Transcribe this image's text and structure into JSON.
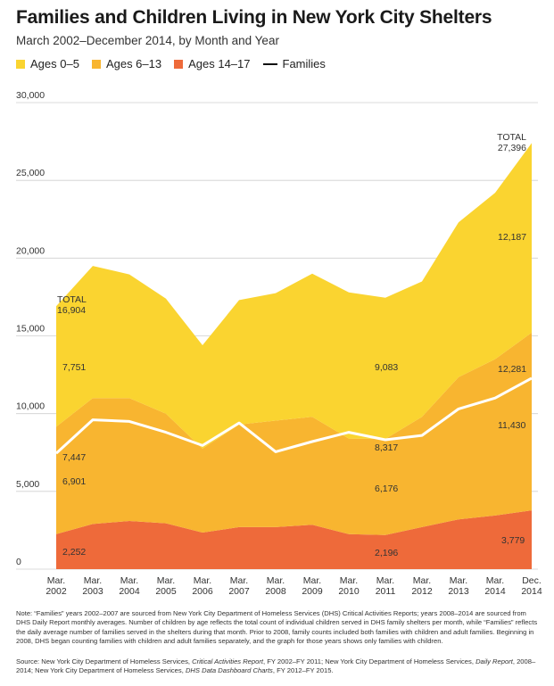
{
  "chart_data": {
    "type": "area",
    "title": "Families and Children Living in New York City Shelters",
    "subtitle": "March 2002–December 2014, by Month and Year",
    "xlabel": "",
    "ylabel": "",
    "ylim": [
      0,
      30000
    ],
    "yticks": [
      0,
      5000,
      10000,
      15000,
      20000,
      25000,
      30000
    ],
    "ytick_labels": [
      "0",
      "5,000",
      "10,000",
      "15,000",
      "20,000",
      "25,000",
      "30,000"
    ],
    "grid": true,
    "legend_position": "top-left",
    "categories": [
      [
        "Mar.",
        "2002"
      ],
      [
        "Mar.",
        "2003"
      ],
      [
        "Mar.",
        "2004"
      ],
      [
        "Mar.",
        "2005"
      ],
      [
        "Mar.",
        "2006"
      ],
      [
        "Mar.",
        "2007"
      ],
      [
        "Mar.",
        "2008"
      ],
      [
        "Mar.",
        "2009"
      ],
      [
        "Mar.",
        "2010"
      ],
      [
        "Mar.",
        "2011"
      ],
      [
        "Mar.",
        "2012"
      ],
      [
        "Mar.",
        "2013"
      ],
      [
        "Mar.",
        "2014"
      ],
      [
        "Dec.",
        "2014"
      ]
    ],
    "series": [
      {
        "name": "Ages 14–17",
        "color": "#ee6a3a",
        "values": [
          2252,
          2900,
          3100,
          2950,
          2350,
          2700,
          2700,
          2850,
          2250,
          2196,
          2700,
          3200,
          3450,
          3779
        ]
      },
      {
        "name": "Ages 6–13",
        "color": "#f8b530",
        "values": [
          6901,
          8100,
          7900,
          7050,
          5400,
          6600,
          6850,
          6950,
          6150,
          6176,
          7100,
          9150,
          10050,
          11430
        ]
      },
      {
        "name": "Ages 0–5",
        "color": "#fad430",
        "values": [
          7751,
          8500,
          7950,
          7400,
          6650,
          8000,
          8200,
          9200,
          9400,
          9083,
          8700,
          9950,
          10700,
          12187
        ]
      }
    ],
    "line_series": {
      "name": "Families",
      "color": "#ffffff",
      "values": [
        7447,
        9600,
        9500,
        8800,
        7950,
        9400,
        7550,
        8200,
        8800,
        8317,
        8600,
        10300,
        11000,
        12281
      ]
    },
    "totals": [
      "16,904",
      "27,396"
    ],
    "annotations": {
      "total_label": "TOTAL",
      "total_2002": "16,904",
      "total_2014": "27,396",
      "ages0_5_2002": "7,751",
      "ages0_5_2011": "9,083",
      "ages0_5_2014": "12,187",
      "ages6_13_2002": "6,901",
      "ages6_13_2011": "6,176",
      "ages6_13_2014": "11,430",
      "ages14_17_2002": "2,252",
      "ages14_17_2011": "2,196",
      "ages14_17_2014": "3,779",
      "families_2002": "7,447",
      "families_2011": "8,317",
      "families_2014": "12,281"
    }
  },
  "legend": {
    "ages_0_5": "Ages 0–5",
    "ages_6_13": "Ages 6–13",
    "ages_14_17": "Ages 14–17",
    "families": "Families",
    "color_0_5": "#fad430",
    "color_6_13": "#f8b530",
    "color_14_17": "#ee6a3a"
  },
  "note": "Note: “Families” years 2002–2007 are sourced from New York City Department of Homeless Services (DHS) Critical Activities Reports; years 2008–2014 are sourced from DHS Daily Report monthly averages. Number of children by age reflects the total count of individual children served in DHS family shelters per month, while “Families” reflects the daily average number of families served in the shelters during that month. Prior to 2008, family counts included both families with children and adult families. Beginning in 2008, DHS began counting families with children and adult families separately, and the graph for those years shows only families with children.",
  "source": {
    "prefix": "Source: New York City Department of Homeless Services, ",
    "pub1": "Critical Activities Report",
    "mid1": ", FY 2002–FY 2011; New York City Department of Homeless Services, ",
    "pub2": "Daily Report",
    "mid2": ", 2008–2014; New York City Department of Homeless Services, ",
    "pub3": "DHS Data Dashboard Charts",
    "suffix": ", FY 2012–FY 2015."
  }
}
